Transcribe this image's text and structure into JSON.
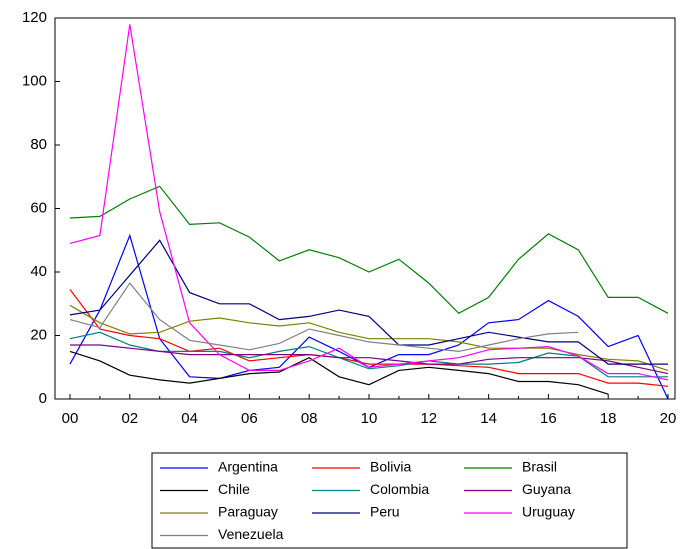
{
  "chart_data": {
    "type": "line",
    "categories": [
      "00",
      null,
      "02",
      null,
      "04",
      null,
      "06",
      null,
      "08",
      null,
      "10",
      null,
      "12",
      null,
      "14",
      null,
      "16",
      null,
      "18",
      null,
      "20"
    ],
    "ylim": [
      0,
      120
    ],
    "yticks": [
      0,
      20,
      40,
      60,
      80,
      100,
      120
    ],
    "series": [
      {
        "name": "Argentina",
        "color": "#0000ff",
        "values": [
          11,
          28,
          51.5,
          19,
          7,
          6.5,
          9,
          10,
          19.5,
          15,
          10,
          14,
          14,
          17,
          24,
          25,
          31,
          26,
          16.5,
          20,
          0
        ]
      },
      {
        "name": "Bolivia",
        "color": "#ff0000",
        "values": [
          34.5,
          22,
          20,
          19,
          15,
          16,
          12,
          13,
          14,
          13,
          11,
          11,
          11,
          10.5,
          10,
          8,
          8,
          8,
          5,
          5,
          4
        ]
      },
      {
        "name": "Brasil",
        "color": "#008000",
        "values": [
          57,
          57.5,
          63,
          67,
          55,
          55.5,
          51,
          43.5,
          47,
          44.5,
          40,
          44,
          36.5,
          27,
          32,
          44,
          52,
          47,
          32,
          32,
          27
        ]
      },
      {
        "name": "Chile",
        "color": "#000000",
        "values": [
          15,
          12,
          7.5,
          6,
          5,
          6.5,
          8,
          8.5,
          13,
          7,
          4.5,
          9,
          10,
          9,
          8,
          5.5,
          5.5,
          4.5,
          1.5,
          null,
          null
        ]
      },
      {
        "name": "Colombia",
        "color": "#008080",
        "values": [
          19,
          21,
          17,
          15,
          15,
          15,
          13,
          15,
          16.5,
          13,
          9.5,
          10.5,
          12,
          11,
          11,
          11.5,
          14.5,
          13.5,
          7,
          7,
          7
        ]
      },
      {
        "name": "Guyana",
        "color": "#800080",
        "values": [
          17,
          17,
          16,
          15,
          14,
          14,
          14,
          14,
          14,
          13,
          13,
          12,
          11,
          11,
          12.5,
          13,
          13,
          13,
          12,
          10,
          8
        ]
      },
      {
        "name": "Paraguay",
        "color": "#808000",
        "values": [
          29.5,
          24,
          20.5,
          21,
          24.5,
          25.5,
          24,
          23,
          24,
          21,
          19,
          19,
          19,
          18,
          16,
          16,
          16,
          14,
          12.5,
          12,
          9
        ]
      },
      {
        "name": "Peru",
        "color": "#000080",
        "values": [
          26.5,
          28,
          39,
          50,
          33.5,
          30,
          30,
          25,
          26,
          28,
          26,
          17,
          17,
          19,
          21,
          19.5,
          18,
          18,
          11,
          11,
          11
        ]
      },
      {
        "name": "Uruguay",
        "color": "#ff00ff",
        "values": [
          49,
          51.5,
          118,
          59,
          24,
          14,
          9,
          9,
          12,
          16,
          10,
          11,
          12,
          13,
          15.5,
          16,
          16.5,
          13.5,
          8,
          8,
          6
        ]
      },
      {
        "name": "Venezuela",
        "color": "#808080",
        "values": [
          25,
          22.5,
          36.5,
          25,
          18.5,
          17,
          15.5,
          17.5,
          22,
          20,
          18,
          17,
          16,
          15,
          17,
          19,
          20.5,
          21,
          null,
          null,
          null
        ]
      }
    ],
    "legend": "bottom"
  }
}
